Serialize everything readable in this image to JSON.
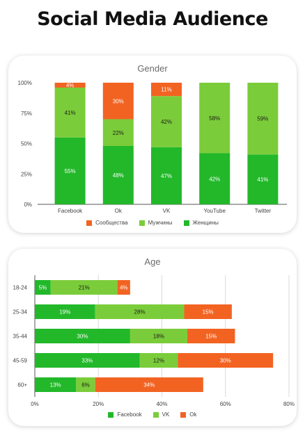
{
  "page": {
    "title": "Social Media Audience"
  },
  "colors": {
    "women": "#22b82a",
    "men": "#7bcc3a",
    "communities": "#f26322",
    "grid": "#d9d9d9",
    "text": "#444444"
  },
  "chart_data": [
    {
      "type": "bar",
      "stacked": true,
      "orientation": "vertical",
      "title": "Gender",
      "categories": [
        "Facebook",
        "Ok",
        "VK",
        "YouTube",
        "Twitter"
      ],
      "series": [
        {
          "name": "Женщины",
          "values": [
            55,
            48,
            47,
            42,
            41
          ],
          "labels": [
            "55%",
            "48%",
            "47%",
            "42%",
            "41%"
          ],
          "color": "#22b82a"
        },
        {
          "name": "Мужчины",
          "values": [
            41,
            22,
            42,
            58,
            59
          ],
          "labels": [
            "41%",
            "22%",
            "42%",
            "58%",
            "59%"
          ],
          "color": "#7bcc3a"
        },
        {
          "name": "Сообщества",
          "values": [
            4,
            30,
            11,
            0,
            0
          ],
          "labels": [
            "4%",
            "30%",
            "11%",
            "",
            ""
          ],
          "color": "#f26322"
        }
      ],
      "legend_order": [
        "Сообщества",
        "Мужчины",
        "Женщины"
      ],
      "ylim": [
        0,
        100
      ],
      "yticks": [
        0,
        25,
        50,
        75,
        100
      ],
      "ytick_labels": [
        "0%",
        "25%",
        "50%",
        "75%",
        "100%"
      ],
      "legend": "bottom",
      "grid": false
    },
    {
      "type": "bar",
      "stacked": true,
      "orientation": "horizontal",
      "title": "Age",
      "categories": [
        "18-24",
        "25-34",
        "35-44",
        "45-59",
        "60+"
      ],
      "series": [
        {
          "name": "Facebook",
          "values": [
            5,
            19,
            30,
            33,
            13
          ],
          "labels": [
            "5%",
            "19%",
            "30%",
            "33%",
            "13%"
          ],
          "color": "#22b82a"
        },
        {
          "name": "VK",
          "values": [
            21,
            28,
            18,
            12,
            6
          ],
          "labels": [
            "21%",
            "28%",
            "18%",
            "12%",
            "6%"
          ],
          "color": "#7bcc3a"
        },
        {
          "name": "Ok",
          "values": [
            4,
            15,
            15,
            30,
            34
          ],
          "labels": [
            "4%",
            "15%",
            "15%",
            "30%",
            "34%"
          ],
          "color": "#f26322"
        }
      ],
      "legend_order": [
        "Facebook",
        "VK",
        "Ok"
      ],
      "xlim": [
        0,
        80
      ],
      "xticks": [
        0,
        20,
        40,
        60,
        80
      ],
      "xtick_labels": [
        "0%",
        "20%",
        "40%",
        "60%",
        "80%"
      ],
      "legend": "bottom",
      "grid": true
    }
  ]
}
